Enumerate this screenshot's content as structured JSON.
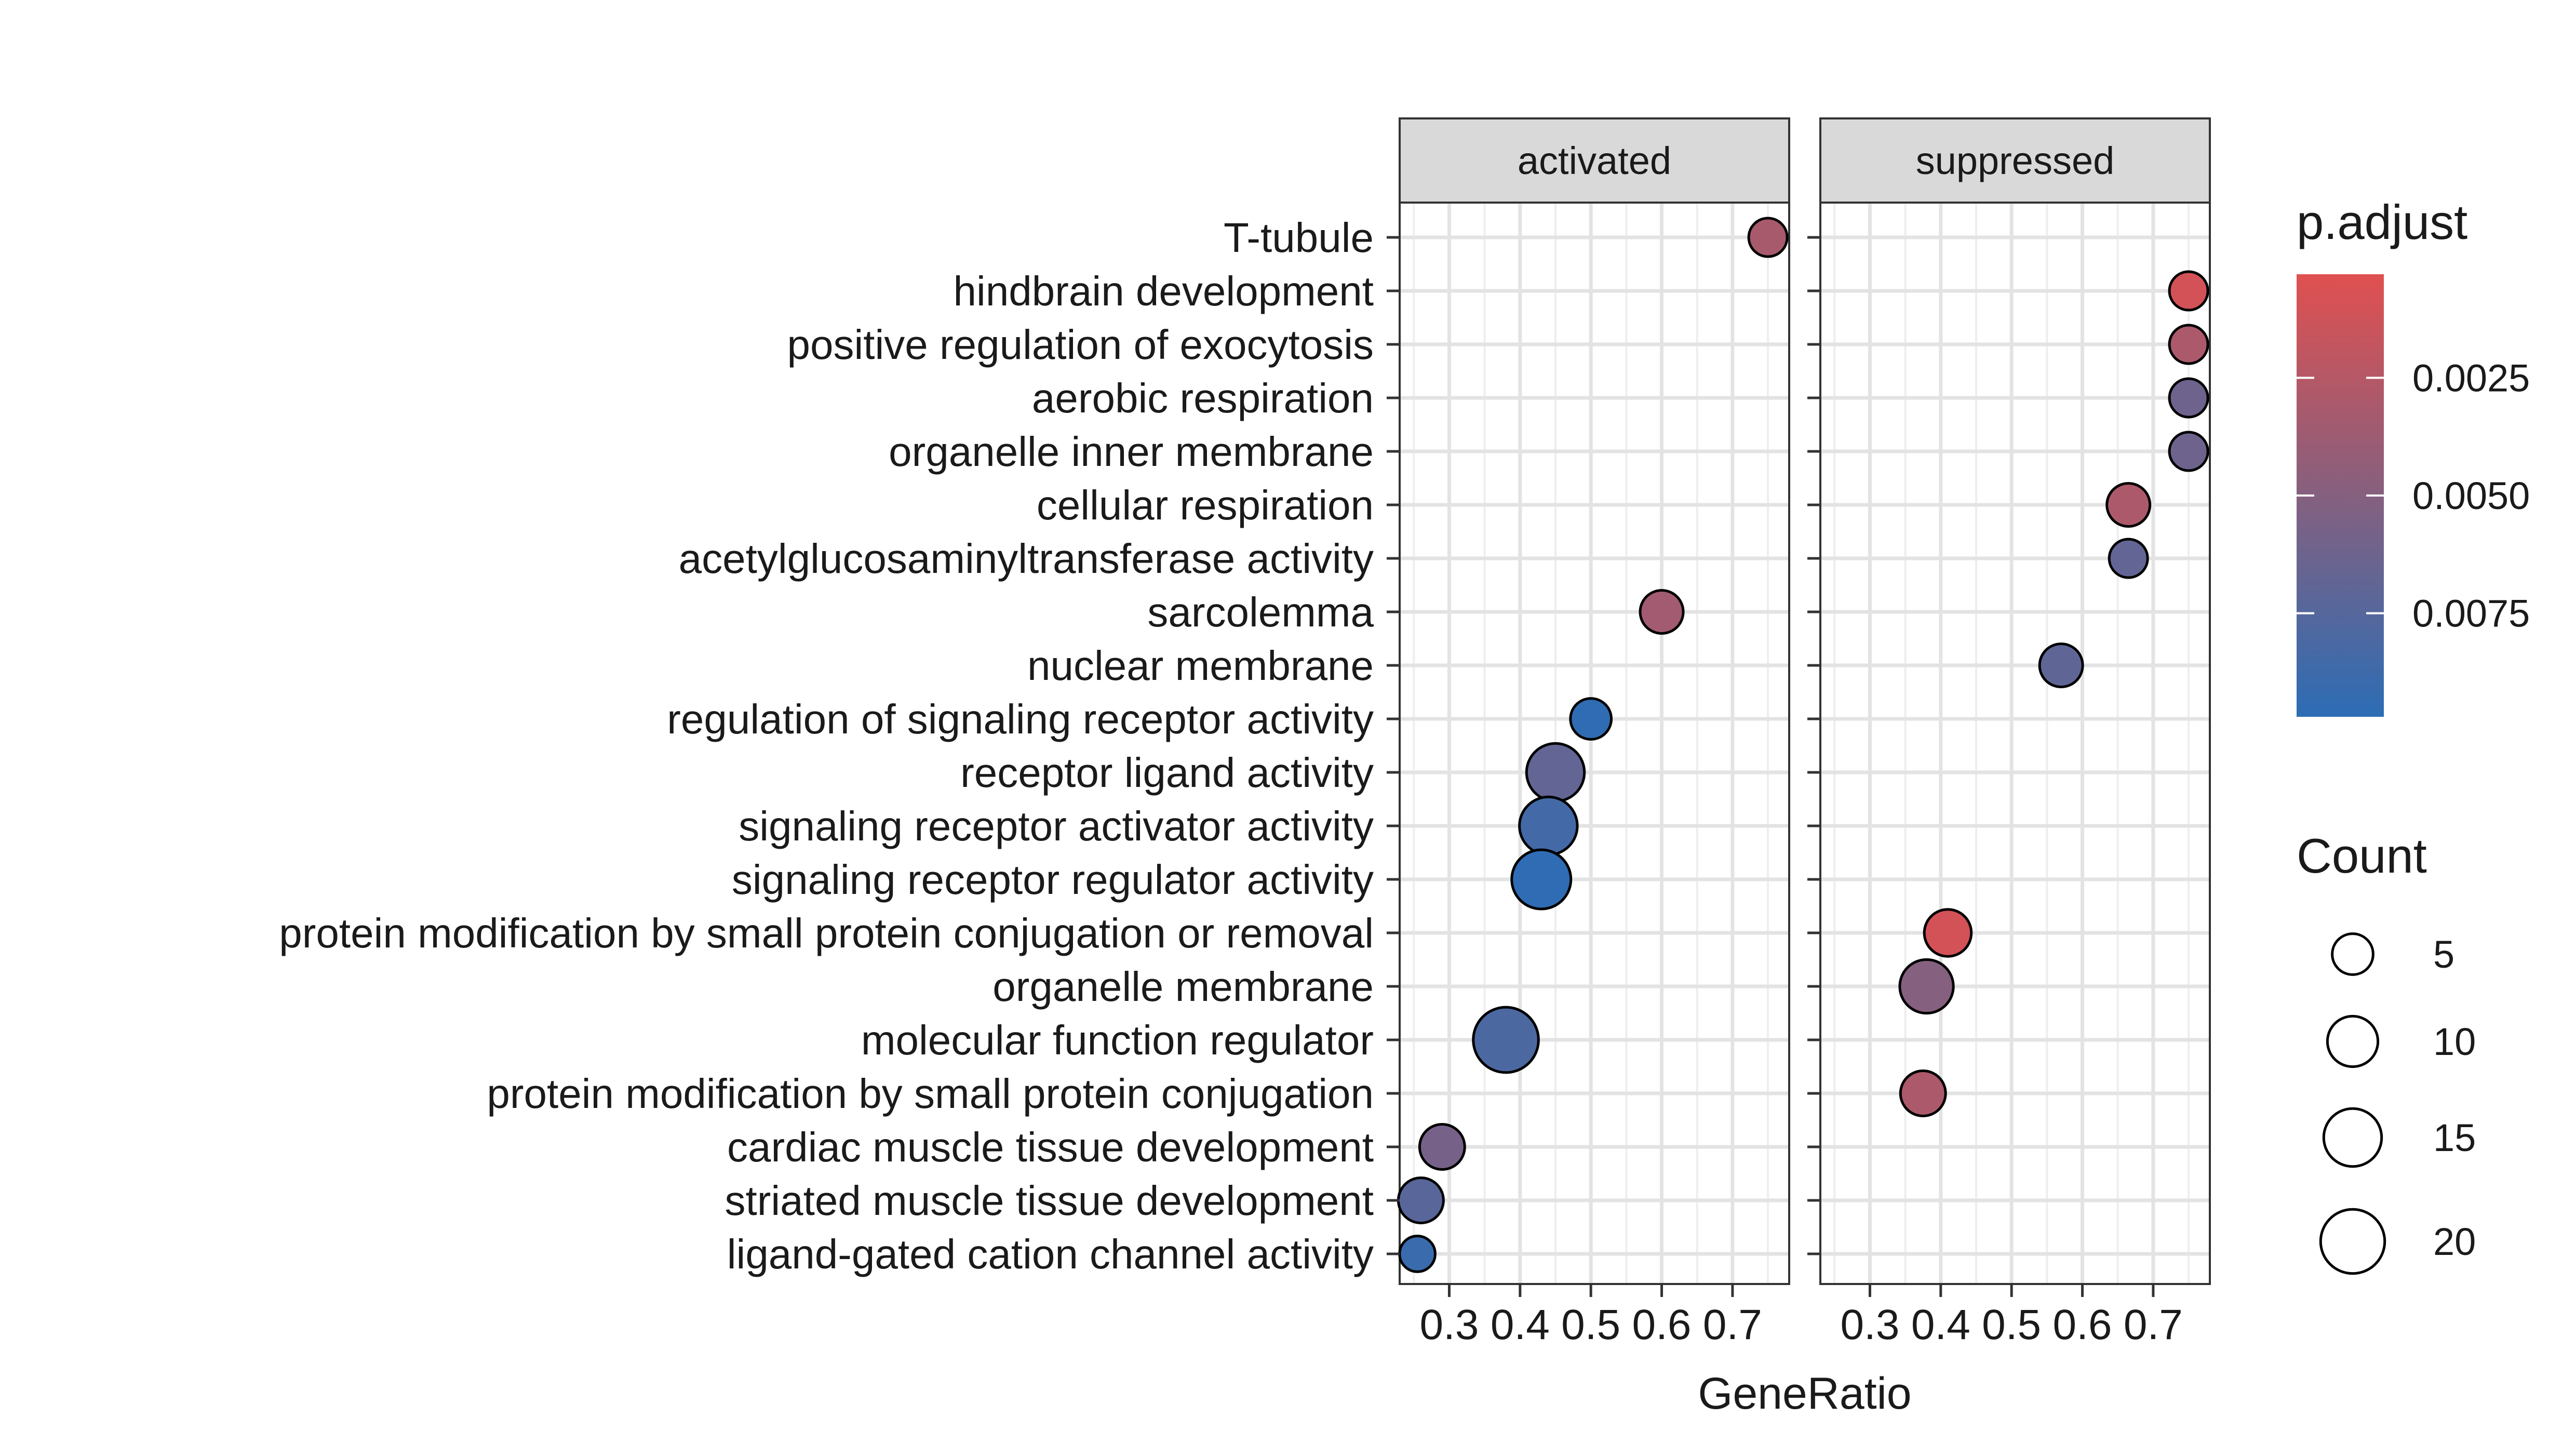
{
  "chart_data": {
    "type": "scatter",
    "xlabel": "GeneRatio",
    "ylabel": "",
    "xlim": [
      0.23,
      0.78
    ],
    "x_ticks": [
      0.3,
      0.4,
      0.5,
      0.6,
      0.7
    ],
    "x_tick_labels": [
      "0.3",
      "0.4",
      "0.5",
      "0.6",
      "0.7"
    ],
    "grid": true,
    "legend_position": "right",
    "facets": [
      "activated",
      "suppressed"
    ],
    "categories": [
      "T-tubule",
      "hindbrain development",
      "positive regulation of exocytosis",
      "aerobic respiration",
      "organelle inner membrane",
      "cellular respiration",
      "acetylglucosaminyltransferase activity",
      "sarcolemma",
      "nuclear membrane",
      "regulation of signaling receptor activity",
      "receptor ligand activity",
      "signaling receptor activator activity",
      "signaling receptor regulator activity",
      "protein modification by small protein conjugation or removal",
      "organelle membrane",
      "molecular function regulator",
      "protein modification by small protein conjugation",
      "cardiac muscle tissue development",
      "striated muscle tissue development",
      "ligand-gated cation channel activity"
    ],
    "points": [
      {
        "facet": "activated",
        "term": "T-tubule",
        "x": 0.75,
        "count": 4,
        "p_adjust": 0.0032
      },
      {
        "facet": "activated",
        "term": "sarcolemma",
        "x": 0.6,
        "count": 6,
        "p_adjust": 0.0035
      },
      {
        "facet": "activated",
        "term": "regulation of signaling receptor activity",
        "x": 0.5,
        "count": 5,
        "p_adjust": 0.0095
      },
      {
        "facet": "activated",
        "term": "receptor ligand activity",
        "x": 0.45,
        "count": 15,
        "p_adjust": 0.0068
      },
      {
        "facet": "activated",
        "term": "signaling receptor activator activity",
        "x": 0.44,
        "count": 15,
        "p_adjust": 0.0085
      },
      {
        "facet": "activated",
        "term": "signaling receptor regulator activity",
        "x": 0.43,
        "count": 16,
        "p_adjust": 0.0095
      },
      {
        "facet": "activated",
        "term": "molecular function regulator",
        "x": 0.38,
        "count": 21,
        "p_adjust": 0.008
      },
      {
        "facet": "activated",
        "term": "cardiac muscle tissue development",
        "x": 0.29,
        "count": 7,
        "p_adjust": 0.0058
      },
      {
        "facet": "activated",
        "term": "striated muscle tissue development",
        "x": 0.26,
        "count": 7,
        "p_adjust": 0.0073
      },
      {
        "facet": "activated",
        "term": "ligand-gated cation channel activity",
        "x": 0.255,
        "count": 3,
        "p_adjust": 0.009
      },
      {
        "facet": "suppressed",
        "term": "hindbrain development",
        "x": 0.75,
        "count": 4,
        "p_adjust": 0.001
      },
      {
        "facet": "suppressed",
        "term": "positive regulation of exocytosis",
        "x": 0.75,
        "count": 4,
        "p_adjust": 0.003
      },
      {
        "facet": "suppressed",
        "term": "aerobic respiration",
        "x": 0.75,
        "count": 4,
        "p_adjust": 0.0062
      },
      {
        "facet": "suppressed",
        "term": "organelle inner membrane",
        "x": 0.75,
        "count": 4,
        "p_adjust": 0.0062
      },
      {
        "facet": "suppressed",
        "term": "cellular respiration",
        "x": 0.665,
        "count": 6,
        "p_adjust": 0.003
      },
      {
        "facet": "suppressed",
        "term": "acetylglucosaminyltransferase activity",
        "x": 0.665,
        "count": 4,
        "p_adjust": 0.0068
      },
      {
        "facet": "suppressed",
        "term": "nuclear membrane",
        "x": 0.57,
        "count": 6,
        "p_adjust": 0.007
      },
      {
        "facet": "suppressed",
        "term": "protein modification by small protein conjugation or removal",
        "x": 0.41,
        "count": 8,
        "p_adjust": 0.001
      },
      {
        "facet": "suppressed",
        "term": "organelle membrane",
        "x": 0.38,
        "count": 12,
        "p_adjust": 0.005
      },
      {
        "facet": "suppressed",
        "term": "protein modification by small protein conjugation",
        "x": 0.375,
        "count": 7,
        "p_adjust": 0.003
      }
    ],
    "color_legend": {
      "title": "p.adjust",
      "breaks": [
        0.0025,
        0.005,
        0.0075
      ],
      "labels": [
        "0.0025",
        "0.0050",
        "0.0075"
      ],
      "range": [
        0.0003,
        0.0097
      ],
      "low_color": "#e05050",
      "mid_color": "#85607f",
      "high_color": "#2c6db5"
    },
    "size_legend": {
      "title": "Count",
      "breaks": [
        5,
        10,
        15,
        20
      ],
      "labels": [
        "5",
        "10",
        "15",
        "20"
      ]
    }
  }
}
